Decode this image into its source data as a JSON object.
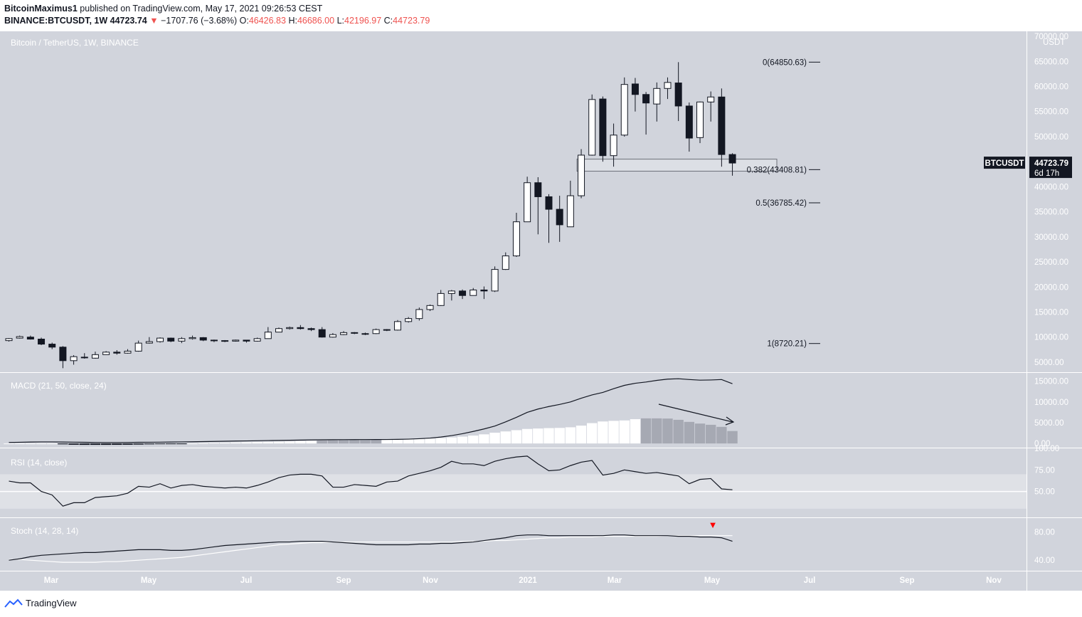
{
  "header": {
    "author": "BitcoinMaximus1",
    "published_text": "published on TradingView.com, May 17, 2021 09:26:53 CEST",
    "symbol": "BINANCE:BTCUSDT, 1W",
    "price": "44723.74",
    "change": "−1707.76 (−3.68%)",
    "o_label": "O:",
    "o_value": "46426.83",
    "h_label": "H:",
    "h_value": "46686.00",
    "l_label": "L:",
    "l_value": "42196.97",
    "c_label": "C:",
    "c_value": "44723.79"
  },
  "footer": {
    "brand": "TradingView"
  },
  "colors": {
    "background": "#d1d4dc",
    "up": "#ffffff",
    "down": "#131722",
    "text_light": "#ffffff",
    "label_bg": "#131722",
    "arrow_red": "#ff0000"
  },
  "chart_data": [
    {
      "type": "candlestick",
      "title": "Bitcoin / TetherUS, 1W, BINANCE",
      "axis_unit": "USDT",
      "ylim": [
        3000,
        71000
      ],
      "y_ticks": [
        "70000.00",
        "65000.00",
        "60000.00",
        "55000.00",
        "50000.00",
        "45000.00",
        "40000.00",
        "35000.00",
        "30000.00",
        "25000.00",
        "20000.00",
        "15000.00",
        "10000.00",
        "5000.00"
      ],
      "x_ticks": [
        "Mar",
        "May",
        "Jul",
        "Sep",
        "Nov",
        "2021",
        "Mar",
        "May",
        "Jul",
        "Sep",
        "Nov"
      ],
      "last_label": {
        "symbol": "BTCUSDT",
        "price": "44723.79",
        "countdown": "6d 17h"
      },
      "fib_levels": [
        {
          "label": "0(64850.63)",
          "value": 64850.63
        },
        {
          "label": "0.382(43408.81)",
          "value": 43408.81
        },
        {
          "label": "0.5(36785.42)",
          "value": 36785.42
        },
        {
          "label": "1(8720.21)",
          "value": 8720.21
        }
      ],
      "support_zone": [
        43100,
        45500
      ],
      "candles": [
        [
          9300,
          9700,
          9100,
          9800
        ],
        [
          9800,
          10100,
          9700,
          10300
        ],
        [
          10000,
          9600,
          9500,
          10300
        ],
        [
          9600,
          8600,
          8400,
          9900
        ],
        [
          8600,
          8000,
          7600,
          8900
        ],
        [
          8000,
          5300,
          3800,
          8200
        ],
        [
          5300,
          6100,
          4500,
          6400
        ],
        [
          6000,
          5900,
          5700,
          6800
        ],
        [
          5800,
          6500,
          5700,
          7100
        ],
        [
          6500,
          7000,
          6600,
          7200
        ],
        [
          7000,
          6800,
          6500,
          7400
        ],
        [
          6800,
          7200,
          6700,
          7600
        ],
        [
          7200,
          8800,
          7100,
          9300
        ],
        [
          8800,
          9100,
          8700,
          10000
        ],
        [
          9100,
          9800,
          8900,
          9950
        ],
        [
          9800,
          9200,
          9000,
          9900
        ],
        [
          9200,
          9700,
          8800,
          10000
        ],
        [
          9700,
          9900,
          9500,
          10300
        ],
        [
          9900,
          9400,
          9200,
          10000
        ],
        [
          9400,
          9300,
          9000,
          9500
        ],
        [
          9300,
          9200,
          9000,
          9400
        ],
        [
          9200,
          9400,
          9100,
          9500
        ],
        [
          9400,
          9200,
          8900,
          9400
        ],
        [
          9200,
          9700,
          9100,
          9900
        ],
        [
          9700,
          11000,
          9700,
          12000
        ],
        [
          11000,
          11700,
          11000,
          11900
        ],
        [
          11700,
          11900,
          11500,
          12100
        ],
        [
          11900,
          11700,
          11500,
          12400
        ],
        [
          11700,
          11500,
          11200,
          11900
        ],
        [
          11500,
          10000,
          9900,
          12000
        ],
        [
          10000,
          10500,
          9900,
          10800
        ],
        [
          10500,
          10900,
          10400,
          11200
        ],
        [
          10900,
          10800,
          10600,
          11000
        ],
        [
          10700,
          10700,
          10400,
          10900
        ],
        [
          10700,
          11500,
          10600,
          11700
        ],
        [
          11500,
          11400,
          11200,
          11600
        ],
        [
          11400,
          13100,
          11300,
          13400
        ],
        [
          13100,
          13700,
          12900,
          14000
        ],
        [
          13700,
          15500,
          13300,
          15900
        ],
        [
          15500,
          16300,
          15200,
          16500
        ],
        [
          16300,
          18700,
          16200,
          19400
        ],
        [
          18700,
          19200,
          17300,
          19400
        ],
        [
          19200,
          18300,
          17600,
          19500
        ],
        [
          18300,
          19400,
          18300,
          19800
        ],
        [
          19400,
          19200,
          17600,
          20100
        ],
        [
          19200,
          23500,
          19000,
          24100
        ],
        [
          23500,
          26200,
          23400,
          26900
        ],
        [
          26200,
          33000,
          26000,
          34800
        ],
        [
          33000,
          40800,
          33000,
          42000
        ],
        [
          40800,
          38000,
          30500,
          41900
        ],
        [
          38000,
          35500,
          28800,
          38500
        ],
        [
          35500,
          32400,
          29000,
          38200
        ],
        [
          32000,
          38200,
          32000,
          41200
        ],
        [
          38200,
          46300,
          37700,
          47500
        ],
        [
          46300,
          57400,
          46200,
          58400
        ],
        [
          57500,
          46200,
          45000,
          58000
        ],
        [
          46200,
          50300,
          44000,
          52600
        ],
        [
          50300,
          60400,
          50000,
          61800
        ],
        [
          60500,
          58400,
          55000,
          61700
        ],
        [
          58400,
          56700,
          50400,
          58900
        ],
        [
          56500,
          59600,
          53000,
          60800
        ],
        [
          59600,
          60800,
          57500,
          61800
        ],
        [
          60700,
          56100,
          53100,
          64850
        ],
        [
          56100,
          49700,
          47000,
          56800
        ],
        [
          49800,
          56900,
          48700,
          57000
        ],
        [
          56900,
          57900,
          53000,
          59000
        ],
        [
          57900,
          46426,
          44000,
          59600
        ],
        [
          46426,
          44723,
          42197,
          46686
        ]
      ]
    },
    {
      "type": "bar",
      "title": "MACD (21, 50, close, 24)",
      "ylim": [
        -1000,
        17000
      ],
      "y_ticks": [
        "15000.00",
        "10000.00",
        "5000.00",
        "0.00"
      ],
      "histogram": [
        0,
        0,
        0,
        0,
        0,
        -200,
        -300,
        -330,
        -330,
        -330,
        -320,
        -300,
        -260,
        -200,
        -150,
        -100,
        -50,
        0,
        80,
        150,
        200,
        260,
        300,
        350,
        400,
        450,
        500,
        560,
        620,
        700,
        760,
        800,
        820,
        840,
        860,
        880,
        920,
        990,
        1050,
        1150,
        1300,
        1450,
        1650,
        1900,
        2200,
        2600,
        2900,
        3200,
        3500,
        3600,
        3700,
        3750,
        3900,
        4300,
        4900,
        5300,
        5450,
        5550,
        5850,
        6050,
        6050,
        6000,
        5700,
        5200,
        4800,
        4500,
        4000,
        3000
      ],
      "histogram_gray_ranges": [
        [
          29,
          34
        ],
        [
          59,
          67
        ]
      ],
      "macd": [
        250,
        300,
        350,
        380,
        380,
        350,
        320,
        280,
        250,
        230,
        230,
        250,
        280,
        300,
        320,
        350,
        380,
        420,
        460,
        500,
        540,
        580,
        620,
        660,
        700,
        740,
        780,
        820,
        860,
        890,
        910,
        920,
        930,
        940,
        950,
        960,
        990,
        1050,
        1150,
        1300,
        1550,
        1900,
        2350,
        2900,
        3500,
        4200,
        5200,
        6300,
        7500,
        8300,
        8900,
        9400,
        10000,
        10900,
        11700,
        12300,
        13200,
        14000,
        14500,
        14800,
        15200,
        15500,
        15600,
        15400,
        15250,
        15300,
        15400,
        14400
      ]
    },
    {
      "type": "line",
      "title": "RSI (14, close)",
      "ylim": [
        20,
        100
      ],
      "y_ticks": [
        "100.00",
        "75.00",
        "50.00"
      ],
      "band": [
        30,
        70
      ],
      "midline": 50,
      "values": [
        62,
        60,
        60,
        50,
        46,
        33,
        37,
        37,
        43,
        44,
        45,
        48,
        56,
        55,
        59,
        54,
        57,
        58,
        56,
        55,
        54,
        55,
        54,
        57,
        61,
        66,
        69,
        70,
        70,
        68,
        55,
        55,
        58,
        57,
        56,
        61,
        62,
        68,
        71,
        74,
        78,
        85,
        82,
        82,
        80,
        85,
        88,
        90,
        91,
        82,
        74,
        75,
        80,
        84,
        86,
        69,
        71,
        75,
        73,
        71,
        72,
        70,
        68,
        59,
        64,
        65,
        53,
        52
      ]
    },
    {
      "type": "line",
      "title": "Stoch (14, 28, 14)",
      "ylim": [
        25,
        100
      ],
      "y_ticks": [
        "80.00",
        "40.00"
      ],
      "k": [
        40,
        42,
        45,
        47,
        48,
        49,
        50,
        51,
        51,
        52,
        53,
        54,
        55,
        55,
        55,
        54,
        54,
        55,
        57,
        59,
        61,
        62,
        63,
        64,
        65,
        66,
        66,
        67,
        67,
        67,
        66,
        65,
        64,
        63,
        62,
        62,
        62,
        62,
        63,
        63,
        64,
        64,
        65,
        66,
        68,
        70,
        72,
        75,
        76,
        76,
        75,
        75,
        75,
        75,
        75,
        75,
        76,
        76,
        75,
        75,
        75,
        75,
        74,
        74,
        73,
        73,
        72,
        67
      ],
      "d": [
        41,
        41,
        40,
        39,
        38,
        37,
        37,
        37,
        37,
        38,
        38,
        39,
        40,
        41,
        42,
        43,
        44,
        46,
        48,
        50,
        52,
        54,
        56,
        58,
        60,
        62,
        63,
        64,
        65,
        65,
        66,
        66,
        66,
        66,
        66,
        66,
        66,
        66,
        66,
        66,
        66,
        66,
        67,
        67,
        67,
        68,
        68,
        69,
        70,
        71,
        72,
        72,
        73,
        73,
        73,
        74,
        74,
        74,
        74,
        74,
        74,
        75,
        75,
        75,
        75,
        75,
        75,
        75
      ],
      "arrow_label": "▼"
    }
  ]
}
